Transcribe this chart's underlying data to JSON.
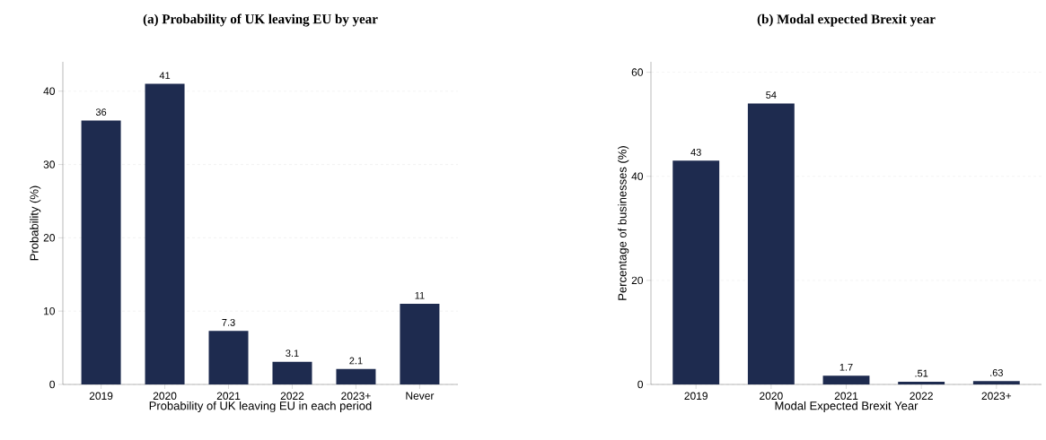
{
  "chart_data": [
    {
      "type": "bar",
      "title": "(a) Probability of UK leaving EU by year",
      "xlabel": "Probability of UK leaving EU in each period",
      "ylabel": "Probability (%)",
      "categories": [
        "2019",
        "2020",
        "2021",
        "2022",
        "2023+",
        "Never"
      ],
      "values": [
        36,
        41,
        7.3,
        3.1,
        2.1,
        11
      ],
      "color": "#1e2b4f",
      "data_labels": true,
      "ylim": [
        0,
        44
      ],
      "yticks": [
        0,
        10,
        20,
        30,
        40
      ],
      "grid": "y"
    },
    {
      "type": "bar",
      "title": "(b) Modal expected Brexit year",
      "xlabel": "Modal Expected Brexit Year",
      "ylabel": "Percentage of businesses (%)",
      "categories": [
        "2019",
        "2020",
        "2021",
        "2022",
        "2023+"
      ],
      "values": [
        43,
        54,
        1.7,
        0.51,
        0.63
      ],
      "value_labels": [
        "43",
        "54",
        "1.7",
        ".51",
        ".63"
      ],
      "color": "#1e2b4f",
      "ylim": [
        0,
        62
      ],
      "yticks": [
        0,
        20,
        40,
        60
      ],
      "grid": "y"
    }
  ]
}
